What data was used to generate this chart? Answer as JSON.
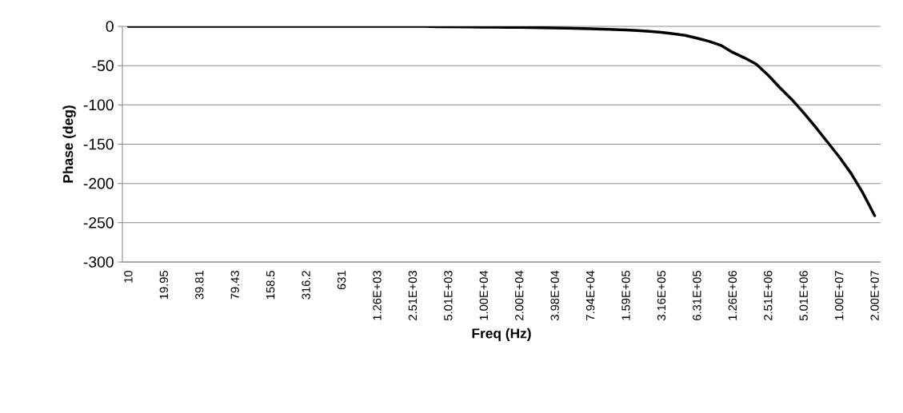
{
  "chart_data": {
    "type": "line",
    "xlabel": "Freq (Hz)",
    "ylabel": "Phase (deg)",
    "categories": [
      "10",
      null,
      null,
      "19.95",
      null,
      null,
      "39.81",
      null,
      null,
      "79.43",
      null,
      null,
      "158.5",
      null,
      null,
      "316.2",
      null,
      null,
      "631",
      null,
      null,
      "1.26E+03",
      null,
      null,
      "2.51E+03",
      null,
      null,
      "5.01E+03",
      null,
      null,
      "1.00E+04",
      null,
      null,
      "2.00E+04",
      null,
      null,
      "3.98E+04",
      null,
      null,
      "7.94E+04",
      null,
      null,
      "1.59E+05",
      null,
      null,
      "3.16E+05",
      null,
      null,
      "6.31E+05",
      null,
      null,
      "1.26E+06",
      null,
      null,
      "2.51E+06",
      null,
      null,
      "5.01E+06",
      null,
      null,
      "1.00E+07",
      null,
      null,
      "2.00E+07"
    ],
    "series": [
      {
        "color": "#000000",
        "values": [
          0,
          0,
          0,
          0,
          0,
          0,
          0,
          0,
          0,
          0,
          0,
          0,
          0,
          0,
          0,
          0,
          0,
          0,
          0,
          0,
          0,
          0,
          0,
          0,
          0,
          0,
          -0.5,
          -0.6,
          -0.7,
          -0.8,
          -1.0,
          -1.1,
          -1.2,
          -1.4,
          -1.5,
          -1.7,
          -2.0,
          -2.3,
          -2.7,
          -3.1,
          -3.5,
          -4.0,
          -4.6,
          -5.4,
          -6.4,
          -7.6,
          -9.5,
          -11.5,
          -15,
          -19,
          -24,
          -33,
          -40,
          -48,
          -62,
          -78,
          -93,
          -110,
          -128,
          -147,
          -166,
          -187,
          -212,
          -241
        ]
      }
    ],
    "ylim": [
      -300,
      0
    ],
    "yticks": [
      -300,
      -250,
      -200,
      -150,
      -100,
      -50,
      0
    ],
    "grid": "y",
    "legend": false,
    "marker": "none",
    "line_style": "solid"
  }
}
